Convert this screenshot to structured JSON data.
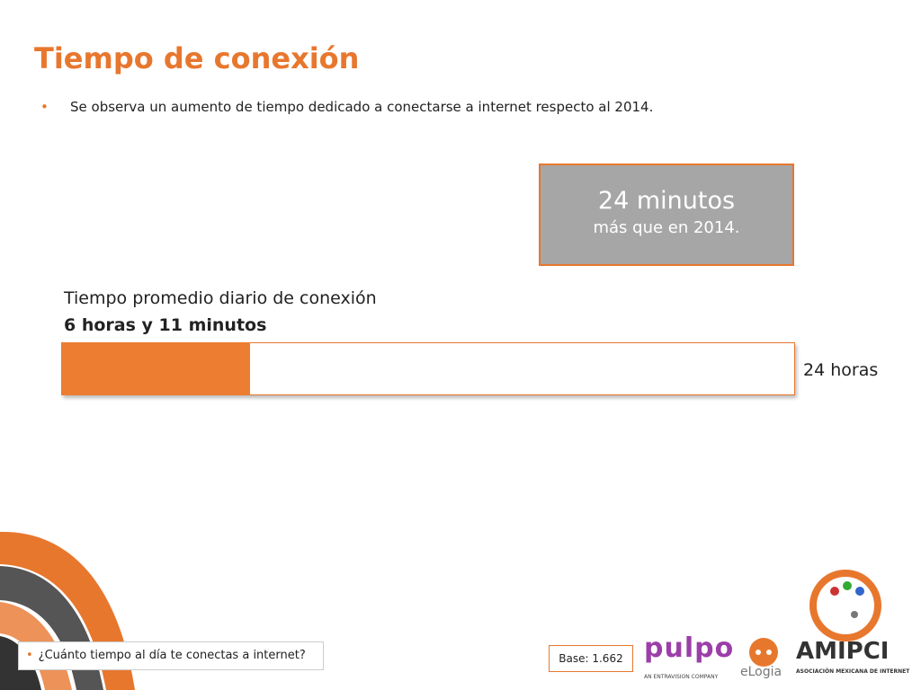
{
  "header": {
    "title": "Tiempo de conexión",
    "bullet": "Se observa un aumento de tiempo dedicado a conectarse a internet respecto al 2014."
  },
  "highlight": {
    "big": "24 minutos",
    "small": "más que en 2014."
  },
  "bar": {
    "label": "Tiempo promedio diario de conexión",
    "value": "6 horas y 11 minutos",
    "total": "24 horas"
  },
  "footer": {
    "question": "¿Cuánto tiempo al día te conectas a internet?",
    "base": "Base: 1.662"
  },
  "logos": {
    "pulpo": "pulpo",
    "pulpo_sub": "AN ENTRAVISION COMPANY",
    "elogia": "eLogia",
    "amipci": "AMIPCI",
    "amipci_sub": "ASOCIACIÓN MEXICANA DE INTERNET"
  }
}
